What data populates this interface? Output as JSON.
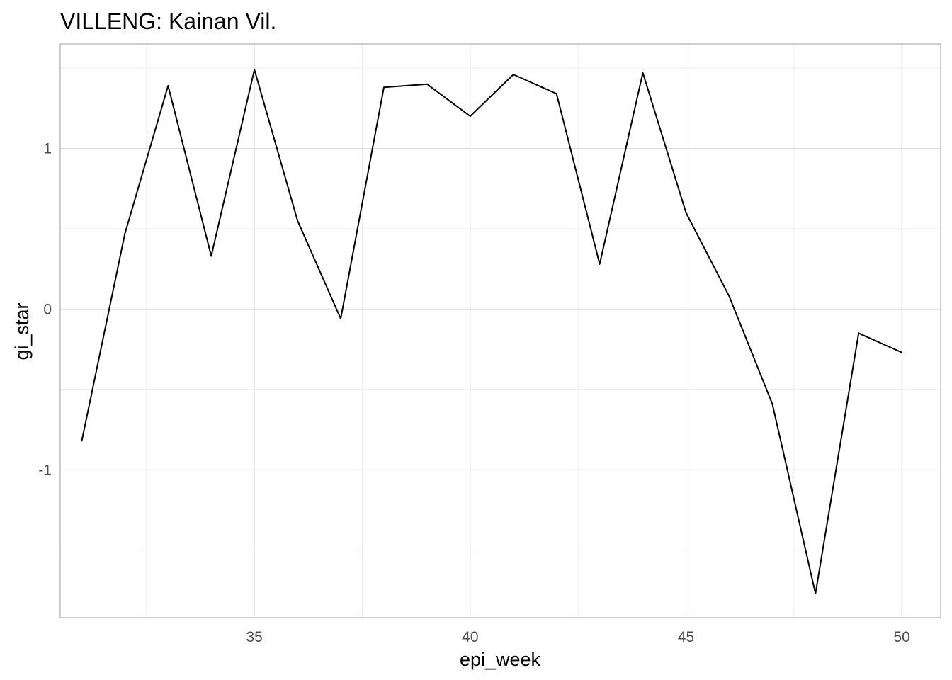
{
  "chart_data": {
    "type": "line",
    "title": "VILLENG: Kainan Vil.",
    "xlabel": "epi_week",
    "ylabel": "gi_star",
    "xlim": [
      30.5,
      50.9
    ],
    "ylim": [
      -1.92,
      1.65
    ],
    "x_ticks": [
      35,
      40,
      45,
      50
    ],
    "x_minor_ticks": [
      32.5,
      37.5,
      42.5,
      47.5
    ],
    "y_ticks": [
      -1,
      0,
      1
    ],
    "y_tick_labels": [
      "-1",
      "0",
      "1"
    ],
    "y_minor_ticks": [
      -1.5,
      -0.5,
      0.5,
      1.5
    ],
    "grid": true,
    "legend": "none",
    "series": [
      {
        "color": "#000000",
        "x": [
          31,
          32,
          33,
          34,
          35,
          36,
          37,
          38,
          39,
          40,
          41,
          42,
          43,
          44,
          45,
          46,
          47,
          48,
          49,
          50
        ],
        "y": [
          -0.82,
          0.47,
          1.39,
          0.33,
          1.49,
          0.55,
          -0.06,
          1.38,
          1.4,
          1.2,
          1.46,
          1.34,
          0.28,
          1.47,
          0.6,
          0.08,
          -0.59,
          -1.77,
          -0.15,
          -0.27
        ]
      }
    ]
  }
}
